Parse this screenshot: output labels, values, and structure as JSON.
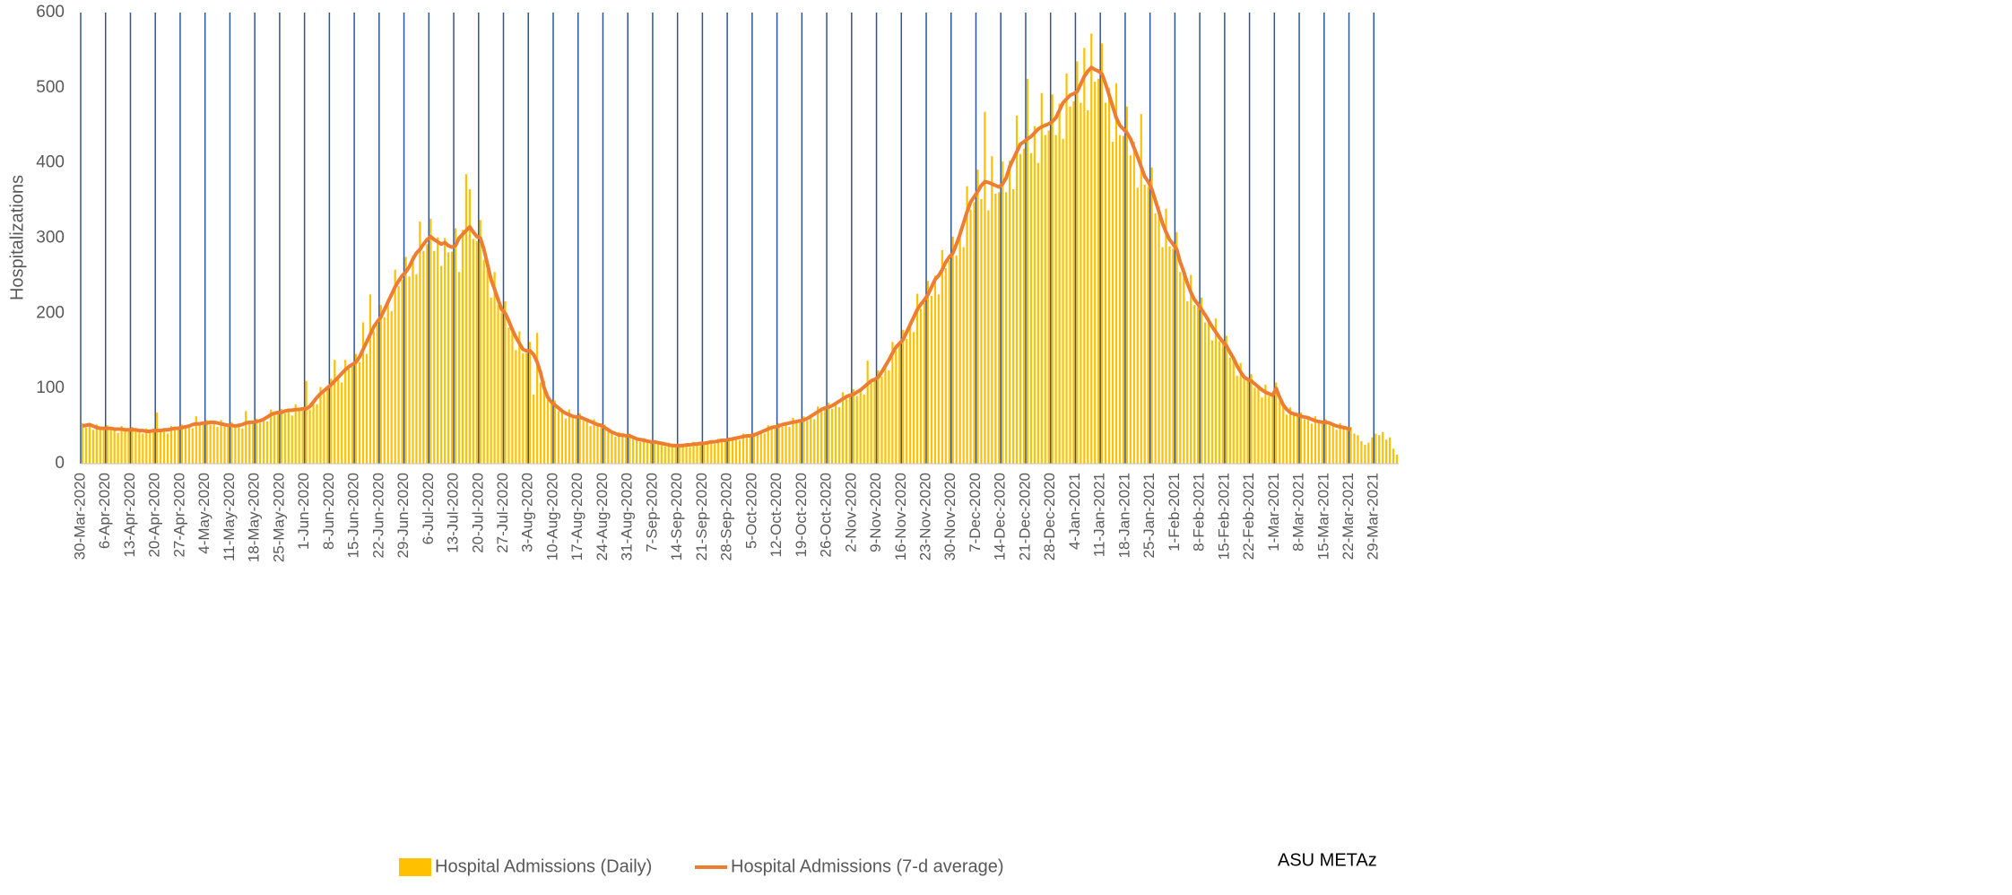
{
  "chart_data": {
    "type": "bar-line",
    "y_axis_label": "Hospitalizations",
    "annotation": "ASU METAz",
    "ylim": [
      0,
      600
    ],
    "yticks": [
      0,
      100,
      200,
      300,
      400,
      500,
      600
    ],
    "grid": "x",
    "categories": [
      "30-Mar-2020",
      null,
      null,
      null,
      null,
      null,
      null,
      "6-Apr-2020",
      null,
      null,
      null,
      null,
      null,
      null,
      "13-Apr-2020",
      null,
      null,
      null,
      null,
      null,
      null,
      "20-Apr-2020",
      null,
      null,
      null,
      null,
      null,
      null,
      "27-Apr-2020",
      null,
      null,
      null,
      null,
      null,
      null,
      "4-May-2020",
      null,
      null,
      null,
      null,
      null,
      null,
      "11-May-2020",
      null,
      null,
      null,
      null,
      null,
      null,
      "18-May-2020",
      null,
      null,
      null,
      null,
      null,
      null,
      "25-May-2020",
      null,
      null,
      null,
      null,
      null,
      null,
      "1-Jun-2020",
      null,
      null,
      null,
      null,
      null,
      null,
      "8-Jun-2020",
      null,
      null,
      null,
      null,
      null,
      null,
      "15-Jun-2020",
      null,
      null,
      null,
      null,
      null,
      null,
      "22-Jun-2020",
      null,
      null,
      null,
      null,
      null,
      null,
      "29-Jun-2020",
      null,
      null,
      null,
      null,
      null,
      null,
      "6-Jul-2020",
      null,
      null,
      null,
      null,
      null,
      null,
      "13-Jul-2020",
      null,
      null,
      null,
      null,
      null,
      null,
      "20-Jul-2020",
      null,
      null,
      null,
      null,
      null,
      null,
      "27-Jul-2020",
      null,
      null,
      null,
      null,
      null,
      null,
      "3-Aug-2020",
      null,
      null,
      null,
      null,
      null,
      null,
      "10-Aug-2020",
      null,
      null,
      null,
      null,
      null,
      null,
      "17-Aug-2020",
      null,
      null,
      null,
      null,
      null,
      null,
      "24-Aug-2020",
      null,
      null,
      null,
      null,
      null,
      null,
      "31-Aug-2020",
      null,
      null,
      null,
      null,
      null,
      null,
      "7-Sep-2020",
      null,
      null,
      null,
      null,
      null,
      null,
      "14-Sep-2020",
      null,
      null,
      null,
      null,
      null,
      null,
      "21-Sep-2020",
      null,
      null,
      null,
      null,
      null,
      null,
      "28-Sep-2020",
      null,
      null,
      null,
      null,
      null,
      null,
      "5-Oct-2020",
      null,
      null,
      null,
      null,
      null,
      null,
      "12-Oct-2020",
      null,
      null,
      null,
      null,
      null,
      null,
      "19-Oct-2020",
      null,
      null,
      null,
      null,
      null,
      null,
      "26-Oct-2020",
      null,
      null,
      null,
      null,
      null,
      null,
      "2-Nov-2020",
      null,
      null,
      null,
      null,
      null,
      null,
      "9-Nov-2020",
      null,
      null,
      null,
      null,
      null,
      null,
      "16-Nov-2020",
      null,
      null,
      null,
      null,
      null,
      null,
      "23-Nov-2020",
      null,
      null,
      null,
      null,
      null,
      null,
      "30-Nov-2020",
      null,
      null,
      null,
      null,
      null,
      null,
      "7-Dec-2020",
      null,
      null,
      null,
      null,
      null,
      null,
      "14-Dec-2020",
      null,
      null,
      null,
      null,
      null,
      null,
      "21-Dec-2020",
      null,
      null,
      null,
      null,
      null,
      null,
      "28-Dec-2020",
      null,
      null,
      null,
      null,
      null,
      null,
      "4-Jan-2021",
      null,
      null,
      null,
      null,
      null,
      null,
      "11-Jan-2021",
      null,
      null,
      null,
      null,
      null,
      null,
      "18-Jan-2021",
      null,
      null,
      null,
      null,
      null,
      null,
      "25-Jan-2021",
      null,
      null,
      null,
      null,
      null,
      null,
      "1-Feb-2021",
      null,
      null,
      null,
      null,
      null,
      null,
      "8-Feb-2021",
      null,
      null,
      null,
      null,
      null,
      null,
      "15-Feb-2021",
      null,
      null,
      null,
      null,
      null,
      null,
      "22-Feb-2021",
      null,
      null,
      null,
      null,
      null,
      null,
      "1-Mar-2021",
      null,
      null,
      null,
      null,
      null,
      null,
      "8-Mar-2021",
      null,
      null,
      null,
      null,
      null,
      null,
      "15-Mar-2021",
      null,
      null,
      null,
      null,
      null,
      null,
      "22-Mar-2021",
      null,
      null,
      null,
      null,
      null,
      null,
      "29-Mar-2021",
      null,
      null,
      null,
      null,
      null,
      null
    ],
    "series": [
      {
        "name": "Hospital Admissions (Daily)",
        "type": "bar",
        "color": "#ffc000",
        "values": [
          54,
          48,
          53,
          45,
          52,
          46,
          46,
          51,
          45,
          47,
          41,
          50,
          44,
          44,
          49,
          43,
          45,
          40,
          47,
          42,
          43,
          68,
          42,
          46,
          40,
          50,
          46,
          46,
          52,
          47,
          51,
          47,
          63,
          52,
          53,
          58,
          52,
          56,
          49,
          58,
          50,
          50,
          55,
          48,
          52,
          47,
          70,
          53,
          54,
          60,
          54,
          60,
          56,
          72,
          65,
          67,
          73,
          67,
          72,
          64,
          79,
          70,
          72,
          110,
          72,
          84,
          79,
          102,
          94,
          99,
          113,
          138,
          117,
          108,
          138,
          126,
          129,
          146,
          135,
          188,
          146,
          225,
          176,
          185,
          211,
          195,
          219,
          203,
          258,
          236,
          245,
          275,
          249,
          277,
          252,
          322,
          283,
          292,
          326,
          283,
          301,
          263,
          300,
          281,
          282,
          313,
          255,
          311,
          385,
          365,
          299,
          296,
          324,
          271,
          270,
          221,
          255,
          211,
          201,
          216,
          181,
          182,
          151,
          176,
          147,
          147,
          162,
          92,
          174,
          108,
          110,
          85,
          80,
          84,
          70,
          71,
          60,
          72,
          61,
          61,
          67,
          57,
          59,
          50,
          59,
          50,
          50,
          52,
          43,
          43,
          36,
          42,
          37,
          36,
          40,
          33,
          34,
          29,
          34,
          29,
          28,
          31,
          27,
          28,
          23,
          28,
          23,
          24,
          26,
          23,
          26,
          22,
          29,
          25,
          26,
          29,
          27,
          30,
          26,
          33,
          30,
          30,
          35,
          31,
          35,
          31,
          40,
          36,
          36,
          41,
          38,
          43,
          40,
          51,
          47,
          48,
          54,
          49,
          54,
          49,
          61,
          54,
          56,
          63,
          57,
          64,
          59,
          76,
          70,
          73,
          81,
          73,
          82,
          75,
          95,
          86,
          89,
          99,
          90,
          100,
          92,
          137,
          107,
          110,
          124,
          116,
          133,
          124,
          162,
          150,
          157,
          178,
          166,
          189,
          175,
          226,
          206,
          214,
          243,
          223,
          250,
          225,
          284,
          260,
          270,
          302,
          277,
          311,
          288,
          369,
          338,
          348,
          391,
          352,
          468,
          337,
          409,
          359,
          361,
          402,
          361,
          403,
          365,
          463,
          412,
          419,
          512,
          413,
          449,
          400,
          493,
          437,
          443,
          491,
          437,
          479,
          432,
          519,
          475,
          482,
          535,
          480,
          553,
          470,
          572,
          508,
          512,
          559,
          480,
          500,
          428,
          506,
          437,
          436,
          475,
          410,
          428,
          367,
          465,
          371,
          368,
          394,
          333,
          342,
          288,
          339,
          289,
          286,
          308,
          255,
          260,
          216,
          251,
          211,
          208,
          221,
          188,
          194,
          164,
          193,
          163,
          159,
          170,
          141,
          143,
          117,
          134,
          112,
          110,
          119,
          101,
          104,
          88,
          105,
          90,
          89,
          108,
          84,
          80,
          65,
          75,
          64,
          64,
          68,
          59,
          62,
          53,
          63,
          54,
          54,
          59,
          51,
          53,
          45,
          54,
          47,
          46,
          49,
          40,
          38,
          30,
          25,
          28,
          35,
          40,
          38,
          42,
          32,
          35,
          20,
          12
        ]
      },
      {
        "name": "Hospital Admissions (7-d average)",
        "type": "line",
        "color": "#ed7d31",
        "values": [
          50,
          51,
          52,
          50,
          48,
          47,
          47,
          47,
          47,
          46,
          46,
          46,
          45,
          45,
          45,
          45,
          44,
          44,
          43,
          43,
          44,
          44,
          44,
          45,
          45,
          46,
          47,
          47,
          48,
          49,
          50,
          52,
          53,
          53,
          54,
          54,
          55,
          55,
          54,
          53,
          52,
          51,
          51,
          50,
          51,
          52,
          54,
          55,
          55,
          56,
          57,
          59,
          62,
          65,
          67,
          68,
          68,
          70,
          71,
          71,
          72,
          72,
          73,
          73,
          76,
          82,
          88,
          93,
          97,
          101,
          105,
          110,
          115,
          120,
          125,
          129,
          132,
          135,
          142,
          152,
          162,
          172,
          182,
          189,
          195,
          205,
          215,
          225,
          235,
          243,
          250,
          255,
          262,
          272,
          280,
          285,
          292,
          298,
          302,
          298,
          295,
          292,
          294,
          290,
          288,
          290,
          300,
          305,
          310,
          315,
          308,
          302,
          300,
          285,
          265,
          245,
          232,
          218,
          205,
          200,
          190,
          178,
          168,
          160,
          152,
          150,
          150,
          145,
          135,
          120,
          100,
          88,
          82,
          78,
          74,
          70,
          67,
          65,
          63,
          62,
          62,
          60,
          58,
          56,
          54,
          52,
          51,
          48,
          45,
          42,
          40,
          38,
          38,
          37,
          37,
          35,
          33,
          32,
          31,
          30,
          29,
          29,
          28,
          27,
          26,
          25,
          24,
          24,
          24,
          24,
          25,
          25,
          26,
          26,
          27,
          27,
          28,
          29,
          29,
          30,
          31,
          31,
          32,
          33,
          34,
          35,
          36,
          37,
          37,
          38,
          40,
          42,
          44,
          46,
          48,
          49,
          50,
          52,
          53,
          54,
          55,
          56,
          57,
          58,
          60,
          63,
          66,
          69,
          72,
          74,
          75,
          77,
          80,
          83,
          86,
          89,
          91,
          92,
          95,
          98,
          102,
          106,
          110,
          112,
          115,
          122,
          130,
          138,
          147,
          155,
          160,
          165,
          175,
          185,
          195,
          205,
          212,
          218,
          225,
          235,
          245,
          250,
          258,
          268,
          275,
          280,
          292,
          305,
          320,
          335,
          348,
          355,
          362,
          370,
          375,
          374,
          372,
          370,
          368,
          372,
          380,
          395,
          405,
          415,
          425,
          428,
          432,
          435,
          440,
          445,
          448,
          450,
          452,
          455,
          460,
          470,
          480,
          485,
          490,
          492,
          495,
          505,
          515,
          522,
          527,
          524,
          522,
          518,
          505,
          490,
          475,
          460,
          450,
          445,
          440,
          432,
          420,
          408,
          395,
          382,
          375,
          365,
          350,
          335,
          320,
          308,
          298,
          292,
          285,
          268,
          255,
          240,
          228,
          218,
          212,
          205,
          198,
          190,
          182,
          175,
          168,
          162,
          157,
          148,
          140,
          130,
          122,
          115,
          112,
          110,
          106,
          102,
          98,
          95,
          93,
          91,
          100,
          88,
          78,
          72,
          68,
          66,
          65,
          63,
          62,
          61,
          59,
          57,
          56,
          55,
          55,
          54,
          52,
          50,
          49,
          48,
          47,
          45,
          null,
          null,
          null,
          null,
          null,
          null,
          null,
          null,
          null,
          null,
          null,
          null,
          null
        ]
      }
    ]
  }
}
